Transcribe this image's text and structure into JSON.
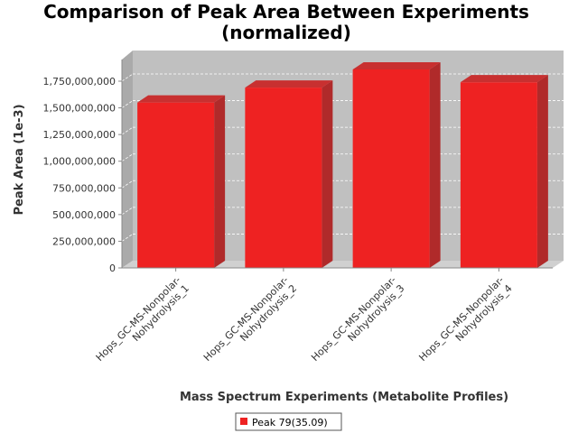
{
  "chart_data": {
    "type": "bar",
    "title": "Comparison of Peak Area Between Experiments (normalized)",
    "title_lines": [
      "Comparison of Peak Area Between Experiments",
      "(normalized)"
    ],
    "xlabel": "Mass Spectrum Experiments (Metabolite Profiles)",
    "ylabel": "Peak Area (1e-3)",
    "ylim": [
      0,
      2000000000
    ],
    "yticks": [
      0,
      250000000,
      500000000,
      750000000,
      1000000000,
      1250000000,
      1500000000,
      1750000000
    ],
    "ytick_labels": [
      "0",
      "250,000,000",
      "500,000,000",
      "750,000,000",
      "1,000,000,000",
      "1,250,000,000",
      "1,500,000,000",
      "1,750,000,000"
    ],
    "categories": [
      [
        "Hops_GC-MS-Nonpolar-",
        "Nohydrolysis_1"
      ],
      [
        "Hops_GC-MS-Nonpolar-",
        "Nohydrolysis_2"
      ],
      [
        "Hops_GC-MS-Nonpolar-",
        "Nohydrolysis_3"
      ],
      [
        "Hops_GC-MS-Nonpolar-",
        "Nohydrolysis_4"
      ]
    ],
    "series": [
      {
        "name": "Peak 79(35.09)",
        "color": "#ee2222",
        "values": [
          1550000000,
          1690000000,
          1860000000,
          1740000000
        ]
      }
    ],
    "grid": true,
    "legend_position": "bottom",
    "style": "3d"
  }
}
